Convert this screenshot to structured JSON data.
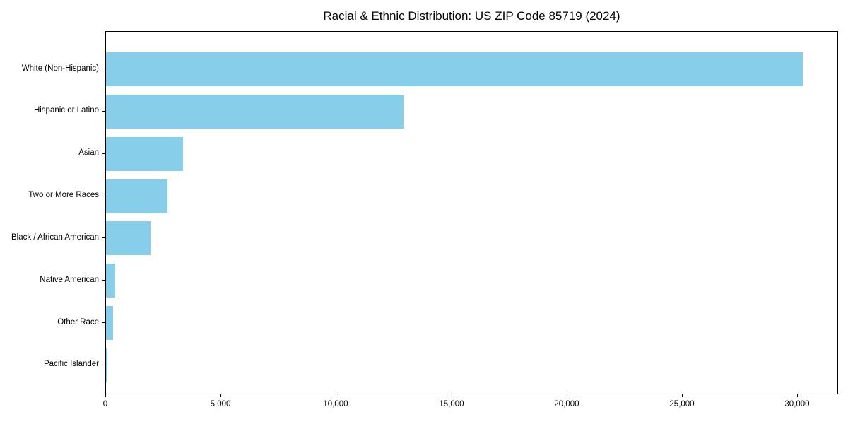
{
  "chart_data": {
    "type": "bar",
    "orientation": "horizontal",
    "title": "Racial & Ethnic Distribution: US ZIP Code 85719 (2024)",
    "categories": [
      "White (Non-Hispanic)",
      "Hispanic or Latino",
      "Asian",
      "Two or More Races",
      "Black / African American",
      "Native American",
      "Other Race",
      "Pacific Islander"
    ],
    "values": [
      30200,
      12900,
      3330,
      2660,
      1930,
      400,
      310,
      60
    ],
    "xlabel": "",
    "ylabel": "",
    "xlim": [
      0,
      31700
    ],
    "xticks": [
      0,
      5000,
      10000,
      15000,
      20000,
      25000,
      30000
    ],
    "xtick_labels": [
      "0",
      "5,000",
      "10,000",
      "15,000",
      "20,000",
      "25,000",
      "30,000"
    ],
    "bar_color": "#87CEEB",
    "background_color": "#ffffff",
    "spine_color": "#000000",
    "grid": false,
    "legend": "none"
  }
}
